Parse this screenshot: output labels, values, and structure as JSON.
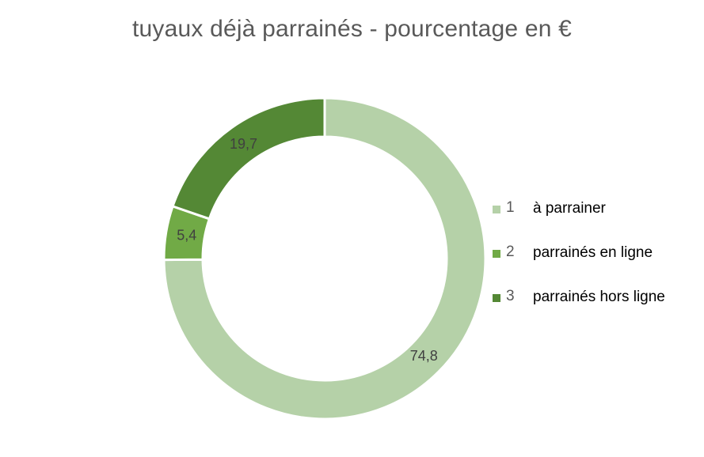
{
  "chart_data": {
    "type": "pie",
    "title": "tuyaux déjà parrainés - pourcentage en €",
    "style": "donut",
    "legend_position": "right",
    "slices": [
      {
        "id": "1",
        "label": "à parrainer",
        "value": 74.8,
        "value_label": "74,8",
        "color": "#b5d1a8"
      },
      {
        "id": "2",
        "label": "parrainés en ligne",
        "value": 5.4,
        "value_label": "5,4",
        "color": "#71aa46"
      },
      {
        "id": "3",
        "label": "parrainés hors ligne",
        "value": 19.7,
        "value_label": "19,7",
        "color": "#548835"
      }
    ]
  }
}
